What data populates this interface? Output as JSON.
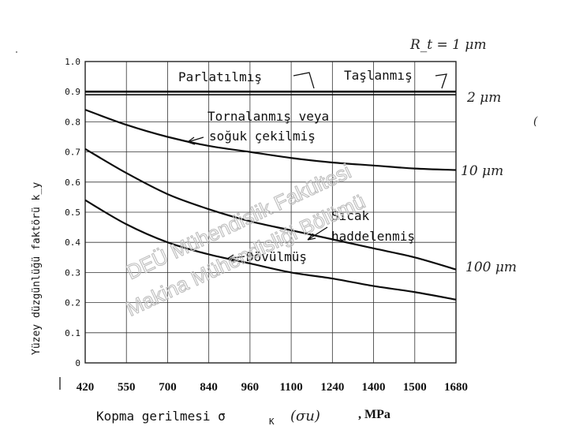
{
  "chart_data": {
    "type": "line",
    "ylabel": "Yüzey düzgünlüğü faktörü k_y",
    "xlabel_main": "Kopma gerilmesi σ",
    "xlabel_sub": "K",
    "xlabel_hand": "(σu)",
    "xlabel_unit": ", MPa",
    "y_ticks": [
      "1.0",
      "0.9",
      "0.8",
      "0.7",
      "0.6",
      "0.5",
      "0.4",
      "0.3",
      "0.2",
      "0.1",
      "0"
    ],
    "ylim": [
      0,
      1.0
    ],
    "grid": true,
    "categories": [
      "420",
      "550",
      "700",
      "840",
      "960",
      "1100",
      "1240",
      "1400",
      "1500",
      "1680"
    ],
    "series": [
      {
        "name": "Parlatılmış",
        "values": [
          0.9,
          0.9,
          0.9,
          0.9,
          0.9,
          0.9,
          0.9,
          0.9,
          0.9,
          0.9
        ]
      },
      {
        "name": "Taşlanmış",
        "values": [
          0.89,
          0.89,
          0.89,
          0.89,
          0.89,
          0.89,
          0.89,
          0.89,
          0.89,
          0.89
        ]
      },
      {
        "name": "Tornalanmış veya soğuk çekilmiş",
        "values": [
          0.84,
          0.79,
          0.75,
          0.72,
          0.7,
          0.68,
          0.665,
          0.655,
          0.645,
          0.64
        ]
      },
      {
        "name": "Sıcak haddelenmiş",
        "values": [
          0.71,
          0.63,
          0.56,
          0.51,
          0.47,
          0.44,
          0.41,
          0.38,
          0.35,
          0.31
        ]
      },
      {
        "name": "Dövülmüş",
        "values": [
          0.54,
          0.46,
          0.4,
          0.36,
          0.33,
          0.3,
          0.28,
          0.255,
          0.235,
          0.21
        ]
      }
    ],
    "annotations": {
      "parlatilmis": "Parlatılmış",
      "taslanmis": "Taşlanmış",
      "tornalanmis_1": "Tornalanmış veya",
      "tornalanmis_2": "soğuk çekilmiş",
      "sicak_1": "Sıcak",
      "sicak_2": "haddelenmiş",
      "dovulmus": "Dövülmüş"
    },
    "roughness_notes": [
      "R_t = 1 μm",
      "2 μm",
      "10 μm",
      "100 μm"
    ],
    "watermark": [
      "DEÜ Mühendislik Fakültesi",
      "Makina Mühendisliği Bölümü"
    ]
  }
}
